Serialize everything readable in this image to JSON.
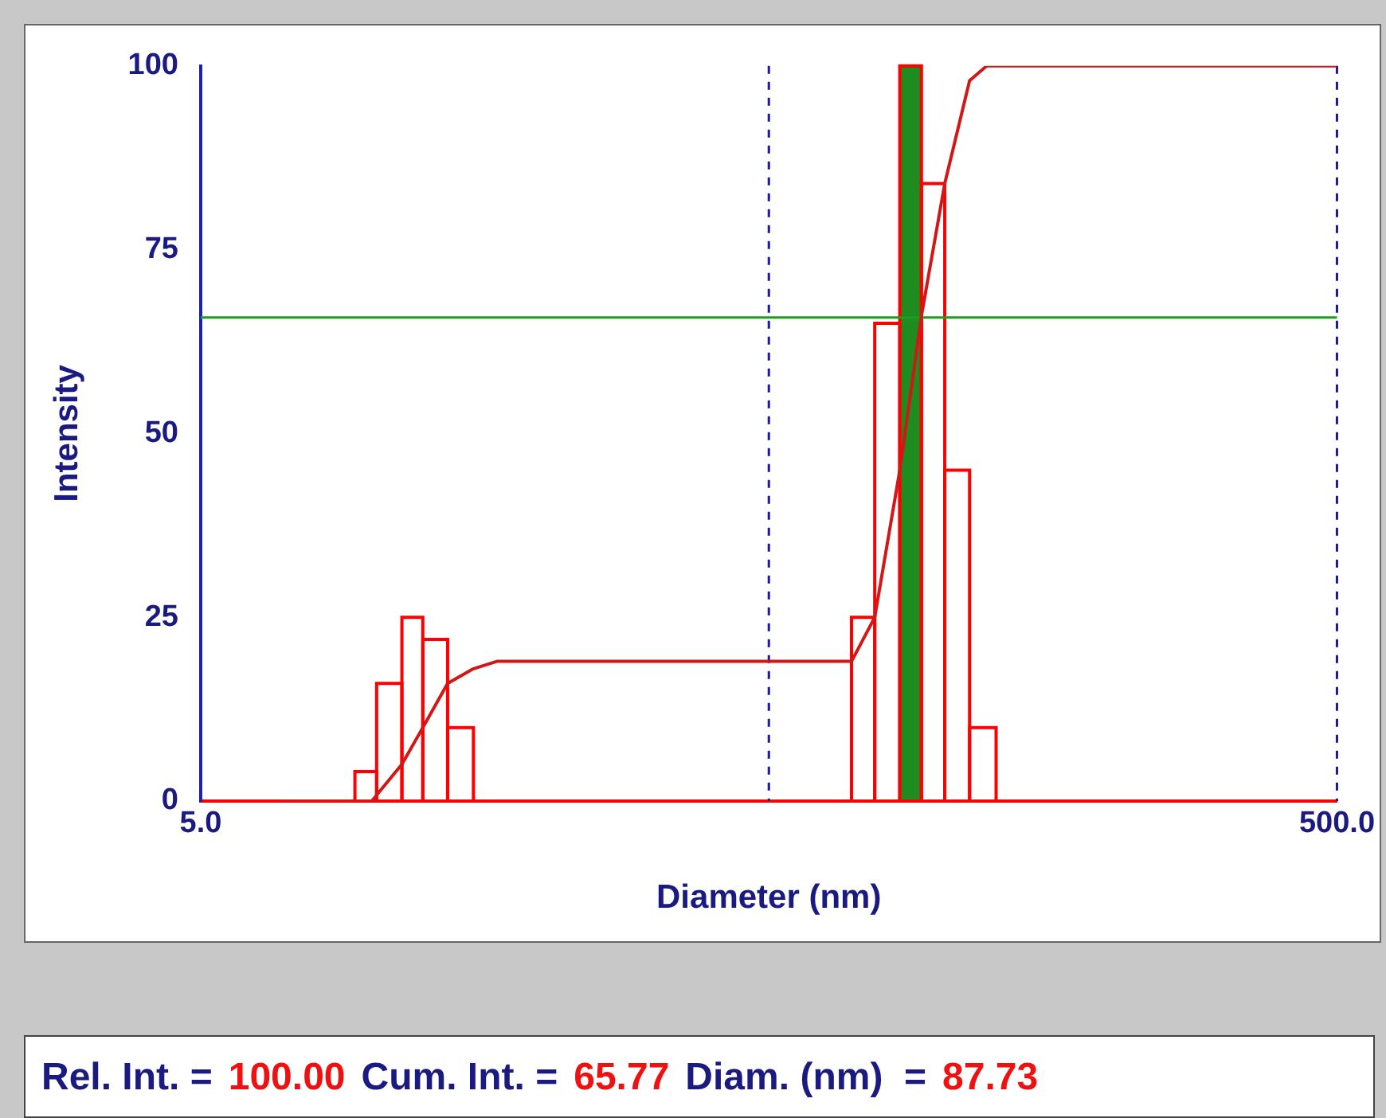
{
  "chart_data": {
    "type": "histogram",
    "xlabel": "Diameter (nm)",
    "ylabel": "Intensity",
    "bins": [
      9.34,
      10.2,
      11.3,
      12.3,
      13.6,
      15.1,
      69.9,
      76.8,
      85.0,
      92.8,
      102,
      112.8,
      125.6
    ],
    "series": [
      {
        "color": "#ff0000",
        "colors": [
          "#ff0000",
          "#ff0000",
          "#ff0000",
          "#ff0000",
          "#ff0000",
          "#ff0000",
          "#ff0000",
          "#ff0000",
          "#1e8c1e",
          "#ff0000",
          "#ff0000",
          "#ff0000"
        ],
        "values": [
          4,
          16,
          25,
          22,
          10,
          0,
          25,
          65,
          100,
          84,
          45,
          10
        ]
      },
      {
        "type": "line",
        "color": "#d01818",
        "x": [
          6.94,
          10.0,
          11.3,
          12.3,
          13.6,
          15.1,
          16.6,
          69.9,
          76.8,
          85.0,
          92.8,
          102,
          112.8,
          120.9,
          500
        ],
        "values": [
          0,
          0,
          5,
          10,
          16,
          18,
          19,
          19,
          25,
          45,
          66,
          84,
          98,
          100,
          100
        ]
      }
    ],
    "xlim": [
      5,
      500
    ],
    "xticks": [
      {
        "value": 5,
        "label": "5.0"
      },
      {
        "value": 500,
        "label": "500.0"
      }
    ],
    "log": "x",
    "ylim": [
      0,
      100
    ],
    "yticks": [
      0,
      25,
      50,
      75,
      100
    ],
    "grid": false,
    "legend": false,
    "marker": "none",
    "line_style": "solid",
    "ref_lines": [
      {
        "axis": "x",
        "value": 50,
        "color": "#1a1aa0",
        "line_style": "dashed"
      },
      {
        "axis": "x",
        "value": 500,
        "color": "#1a1aa0",
        "line_style": "dashed"
      },
      {
        "axis": "y",
        "value": 65.77,
        "color": "#1e9e1e",
        "line_style": "solid"
      }
    ],
    "annotations": [
      "Rel. Int. =",
      "100.00",
      "Cum. Int. =",
      "65.77",
      "Diam. (nm)  =",
      "87.73"
    ]
  }
}
